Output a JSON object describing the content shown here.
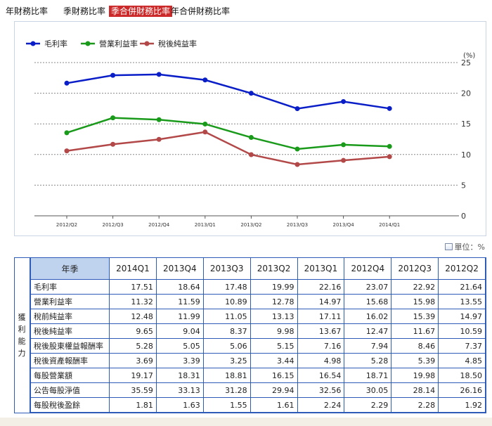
{
  "tabs": [
    {
      "label": "年財務比率",
      "active": false
    },
    {
      "label": "季財務比率",
      "active": false
    },
    {
      "label": "季合併財務比率",
      "active": true
    },
    {
      "label": "年合併財務比率",
      "active": false
    }
  ],
  "unit_label": "單位：%",
  "chart_data": {
    "type": "line",
    "categories": [
      "2012/Q2",
      "2012/Q3",
      "2012/Q4",
      "2013/Q1",
      "2013/Q2",
      "2013/Q3",
      "2013/Q4",
      "2014/Q1"
    ],
    "series": [
      {
        "name": "毛利率",
        "color": "#0a1ec8",
        "values": [
          21.64,
          22.92,
          23.07,
          22.16,
          19.99,
          17.48,
          18.64,
          17.51
        ]
      },
      {
        "name": "營業利益率",
        "color": "#1a9a1a",
        "values": [
          13.55,
          15.98,
          15.68,
          14.97,
          12.78,
          10.89,
          11.59,
          11.32
        ]
      },
      {
        "name": "稅後純益率",
        "color": "#b24848",
        "values": [
          10.59,
          11.67,
          12.47,
          13.67,
          9.98,
          8.37,
          9.04,
          9.65
        ]
      }
    ],
    "y_unit": "(%)",
    "yticks": [
      0,
      5,
      10,
      15,
      20,
      25
    ],
    "ylim": [
      0,
      25
    ],
    "grid": true,
    "legend_position": "top-left"
  },
  "table": {
    "side_label": [
      "獲",
      "利",
      "能",
      "力"
    ],
    "header_label": "年季",
    "columns": [
      "2014Q1",
      "2013Q4",
      "2013Q3",
      "2013Q2",
      "2013Q1",
      "2012Q4",
      "2012Q3",
      "2012Q2"
    ],
    "rows": [
      {
        "label": "毛利率",
        "values": [
          "17.51",
          "18.64",
          "17.48",
          "19.99",
          "22.16",
          "23.07",
          "22.92",
          "21.64"
        ]
      },
      {
        "label": "營業利益率",
        "values": [
          "11.32",
          "11.59",
          "10.89",
          "12.78",
          "14.97",
          "15.68",
          "15.98",
          "13.55"
        ]
      },
      {
        "label": "稅前純益率",
        "values": [
          "12.48",
          "11.99",
          "11.05",
          "13.13",
          "17.11",
          "16.02",
          "15.39",
          "14.97"
        ]
      },
      {
        "label": "稅後純益率",
        "values": [
          "9.65",
          "9.04",
          "8.37",
          "9.98",
          "13.67",
          "12.47",
          "11.67",
          "10.59"
        ]
      },
      {
        "label": "稅後股東權益報酬率",
        "values": [
          "5.28",
          "5.05",
          "5.06",
          "5.15",
          "7.16",
          "7.94",
          "8.46",
          "7.37"
        ]
      },
      {
        "label": "稅後資產報酬率",
        "values": [
          "3.69",
          "3.39",
          "3.25",
          "3.44",
          "4.98",
          "5.28",
          "5.39",
          "4.85"
        ]
      },
      {
        "label": "每股營業額",
        "values": [
          "19.17",
          "18.31",
          "18.81",
          "16.15",
          "16.54",
          "18.71",
          "19.98",
          "18.50"
        ]
      },
      {
        "label": "公告每股淨值",
        "values": [
          "35.59",
          "33.13",
          "31.28",
          "29.94",
          "32.56",
          "30.05",
          "28.14",
          "26.16"
        ]
      },
      {
        "label": "每股稅後盈餘",
        "values": [
          "1.81",
          "1.63",
          "1.55",
          "1.61",
          "2.24",
          "2.29",
          "2.28",
          "1.92"
        ]
      }
    ]
  }
}
